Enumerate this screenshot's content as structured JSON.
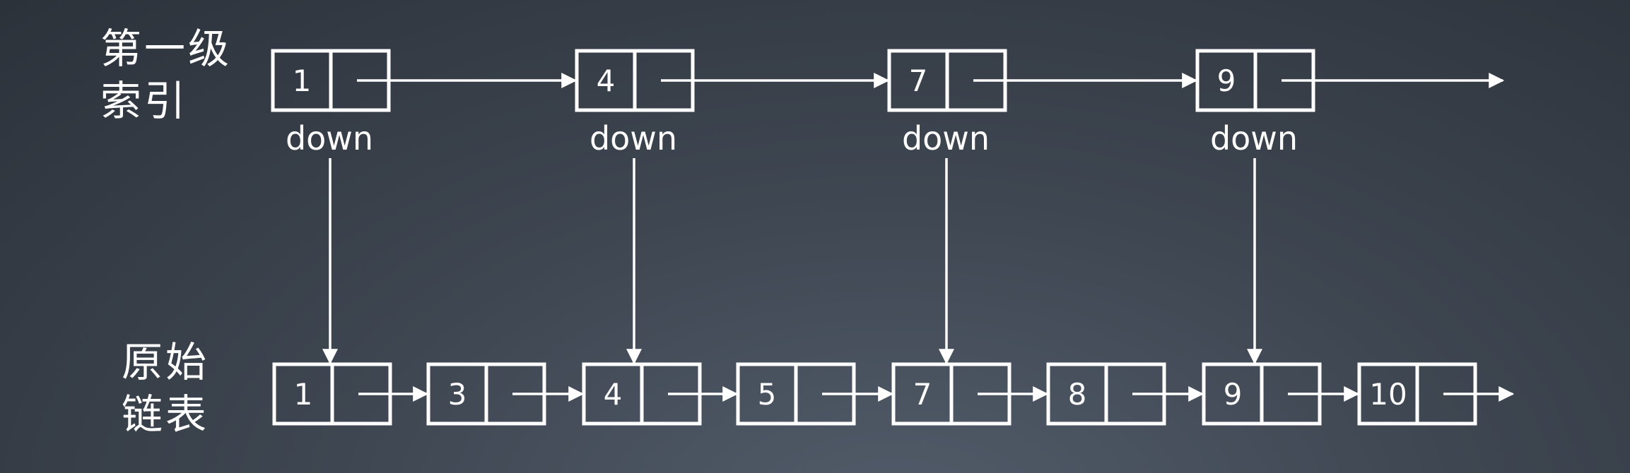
{
  "labels": {
    "index_line1": "第一级",
    "index_line2": "索引",
    "base_line1": "原始",
    "base_line2": "链表"
  },
  "index_nodes": [
    "1",
    "4",
    "7",
    "9"
  ],
  "base_nodes": [
    "1",
    "3",
    "4",
    "5",
    "7",
    "8",
    "9",
    "10"
  ],
  "down_label": "down",
  "colors": {
    "stroke": "#ffffff",
    "text": "#ffffff"
  }
}
